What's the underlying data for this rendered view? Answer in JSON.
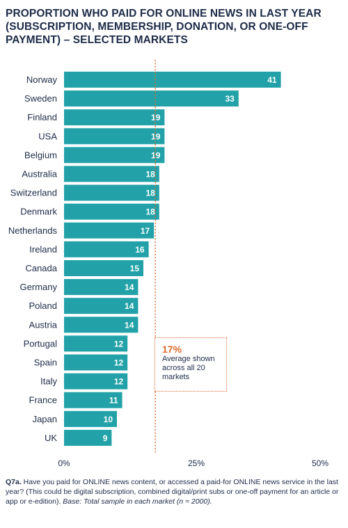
{
  "title": "PROPORTION WHO PAID FOR ONLINE NEWS IN LAST YEAR (SUBSCRIPTION, MEMBERSHIP, DONATION, OR ONE-OFF PAYMENT) – SELECTED MARKETS",
  "callout": {
    "value": "17%",
    "text": "Average shown across all 20 markets"
  },
  "footnote": {
    "lead": "Q7a.",
    "question": " Have you paid for ONLINE news content, or accessed a paid-for ONLINE news service in the last year? (This could be digital subscription, combined digital/print subs or one-off payment for an article or app or e-edition).",
    "base": " Base: Total sample in each market (n ≈ 2000)."
  },
  "chart_data": {
    "type": "bar",
    "orientation": "horizontal",
    "categories": [
      "Norway",
      "Sweden",
      "Finland",
      "USA",
      "Belgium",
      "Australia",
      "Switzerland",
      "Denmark",
      "Netherlands",
      "Ireland",
      "Canada",
      "Germany",
      "Poland",
      "Austria",
      "Portugal",
      "Spain",
      "Italy",
      "France",
      "Japan",
      "UK"
    ],
    "values": [
      41,
      33,
      19,
      19,
      19,
      18,
      18,
      18,
      17,
      16,
      15,
      14,
      14,
      14,
      12,
      12,
      12,
      11,
      10,
      9
    ],
    "xlim": [
      0,
      50
    ],
    "x_ticks": [
      "0%",
      "25%",
      "50%"
    ],
    "average": 17,
    "bar_color": "#22a2a8",
    "average_color": "#e06a2c",
    "grid": false
  }
}
